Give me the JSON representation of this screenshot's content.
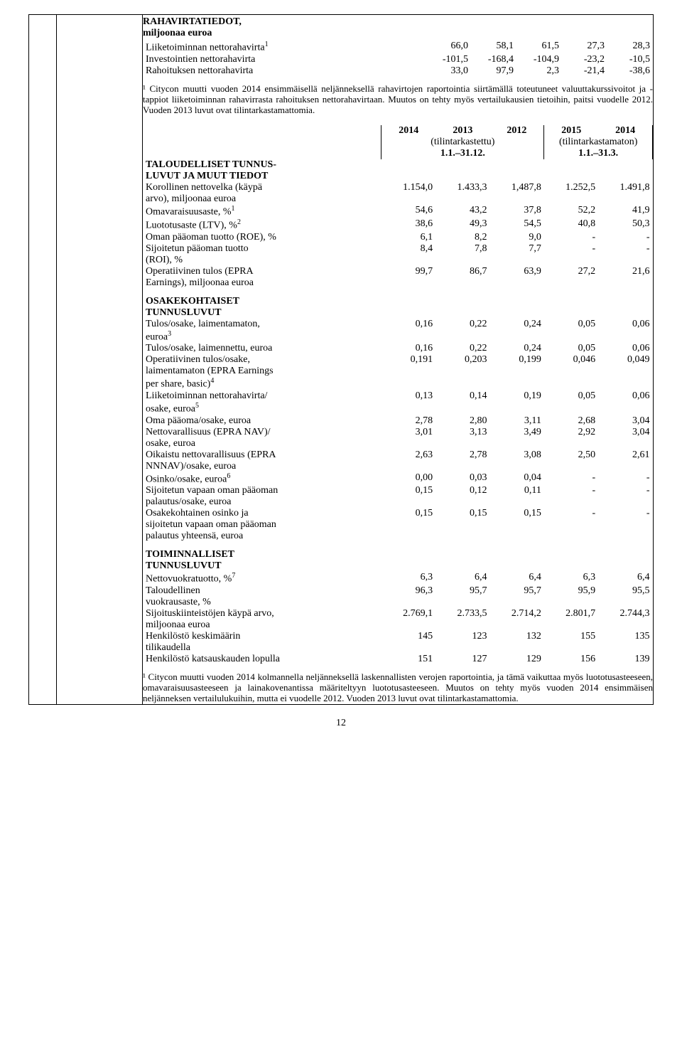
{
  "cashflow": {
    "title": "RAHAVIRTATIEDOT,",
    "subtitle": "miljoonaa euroa",
    "rows": [
      {
        "label": "Liiketoiminnan nettorahavirta",
        "sup": "1",
        "c": [
          "66,0",
          "58,1",
          "61,5",
          "27,3",
          "28,3"
        ]
      },
      {
        "label": "Investointien nettorahavirta",
        "c": [
          "-101,5",
          "-168,4",
          "-104,9",
          "-23,2",
          "-10,5"
        ]
      },
      {
        "label": "Rahoituksen nettorahavirta",
        "c": [
          "33,0",
          "97,9",
          "2,3",
          "-21,4",
          "-38,6"
        ]
      }
    ],
    "footnote": "¹ Citycon muutti vuoden 2014 ensimmäisellä neljänneksellä rahavirtojen raportointia siirtämällä toteutuneet valuuttakurssivoitot ja -tappiot liiketoiminnan rahavirrasta rahoituksen nettorahavirtaan. Muutos on tehty myös vertailukausien tietoihin, paitsi vuodelle 2012. Vuoden 2013 luvut ovat tilintarkastamattomia."
  },
  "header": {
    "years_left": [
      "2014",
      "2013",
      "2012"
    ],
    "years_right": [
      "2015",
      "2014"
    ],
    "note_left": "(tilintarkastettu)",
    "note_right": "(tilintarkastamaton)",
    "period_left": "1.1.–31.12.",
    "period_right": "1.1.–31.3."
  },
  "sections": [
    {
      "title_lines": [
        "TALOUDELLISET TUNNUS-",
        "LUVUT JA MUUT TIEDOT"
      ],
      "rows": [
        {
          "label_lines": [
            "Korollinen nettovelka (käypä",
            "arvo), miljoonaa euroa"
          ],
          "c": [
            "1.154,0",
            "1.433,3",
            "1,487,8",
            "1.252,5",
            "1.491,8"
          ]
        },
        {
          "label": "Omavaraisuusaste, %",
          "sup": "1",
          "c": [
            "54,6",
            "43,2",
            "37,8",
            "52,2",
            "41,9"
          ]
        },
        {
          "label": "Luototusaste (LTV), %",
          "sup": "2",
          "c": [
            "38,6",
            "49,3",
            "54,5",
            "40,8",
            "50,3"
          ]
        },
        {
          "label": "Oman pääoman tuotto (ROE), %",
          "c": [
            "6,1",
            "8,2",
            "9,0",
            "-",
            "-"
          ]
        },
        {
          "label_lines": [
            "Sijoitetun pääoman tuotto",
            "(ROI), %"
          ],
          "c": [
            "8,4",
            "7,8",
            "7,7",
            "-",
            "-"
          ]
        },
        {
          "label_lines": [
            "Operatiivinen tulos (EPRA",
            "Earnings), miljoonaa euroa"
          ],
          "c": [
            "99,7",
            "86,7",
            "63,9",
            "27,2",
            "21,6"
          ]
        }
      ]
    },
    {
      "title_lines": [
        "OSAKEKOHTAISET",
        "TUNNUSLUVUT"
      ],
      "rows": [
        {
          "label_lines": [
            "Tulos/osake, laimentamaton,",
            "euroa"
          ],
          "sup": "3",
          "c": [
            "0,16",
            "0,22",
            "0,24",
            "0,05",
            "0,06"
          ]
        },
        {
          "label": "Tulos/osake, laimennettu, euroa",
          "c": [
            "0,16",
            "0,22",
            "0,24",
            "0,05",
            "0,06"
          ]
        },
        {
          "label_lines": [
            "Operatiivinen tulos/osake,",
            "laimentamaton (EPRA Earnings",
            "per share, basic)"
          ],
          "sup": "4",
          "c": [
            "0,191",
            "0,203",
            "0,199",
            "0,046",
            "0,049"
          ]
        },
        {
          "label_lines": [
            "Liiketoiminnan nettorahavirta/",
            "osake, euroa"
          ],
          "sup": "5",
          "c": [
            "0,13",
            "0,14",
            "0,19",
            "0,05",
            "0,06"
          ]
        },
        {
          "label": "Oma pääoma/osake, euroa",
          "c": [
            "2,78",
            "2,80",
            "3,11",
            "2,68",
            "3,04"
          ]
        },
        {
          "label_lines": [
            "Nettovarallisuus (EPRA NAV)/",
            "osake, euroa"
          ],
          "c": [
            "3,01",
            "3,13",
            "3,49",
            "2,92",
            "3,04"
          ]
        },
        {
          "label_lines": [
            "Oikaistu nettovarallisuus (EPRA",
            "NNNAV)/osake, euroa"
          ],
          "c": [
            "2,63",
            "2,78",
            "3,08",
            "2,50",
            "2,61"
          ]
        },
        {
          "label": "Osinko/osake, euroa",
          "sup": "6",
          "c": [
            "0,00",
            "0,03",
            "0,04",
            "-",
            "-"
          ]
        },
        {
          "label_lines": [
            "Sijoitetun vapaan oman pääoman",
            "palautus/osake, euroa"
          ],
          "c": [
            "0,15",
            "0,12",
            "0,11",
            "-",
            "-"
          ]
        },
        {
          "label_lines": [
            "Osakekohtainen osinko ja",
            "sijoitetun vapaan oman pääoman",
            "palautus yhteensä, euroa"
          ],
          "c": [
            "0,15",
            "0,15",
            "0,15",
            "-",
            "-"
          ]
        }
      ]
    },
    {
      "title_lines": [
        "TOIMINNALLISET",
        "TUNNUSLUVUT"
      ],
      "rows": [
        {
          "label": "Nettovuokratuotto, %",
          "sup": "7",
          "c": [
            "6,3",
            "6,4",
            "6,4",
            "6,3",
            "6,4"
          ]
        },
        {
          "label_lines": [
            "Taloudellinen",
            "vuokrausaste, %"
          ],
          "c": [
            "96,3",
            "95,7",
            "95,7",
            "95,9",
            "95,5"
          ]
        },
        {
          "label_lines": [
            "Sijoituskiinteistöjen käypä arvo,",
            "miljoonaa euroa"
          ],
          "c": [
            "2.769,1",
            "2.733,5",
            "2.714,2",
            "2.801,7",
            "2.744,3"
          ]
        },
        {
          "label_lines": [
            "Henkilöstö keskimäärin",
            "tilikaudella"
          ],
          "c": [
            "145",
            "123",
            "132",
            "155",
            "135"
          ]
        },
        {
          "label": "Henkilöstö katsauskauden lopulla",
          "c": [
            "151",
            "127",
            "129",
            "156",
            "139"
          ]
        }
      ]
    }
  ],
  "bottom_footnote": "¹ Citycon muutti vuoden 2014 kolmannella neljänneksellä laskennallisten verojen raportointia, ja tämä vaikuttaa myös luototusasteeseen, omavaraisuusasteeseen ja lainakovenantissa määriteltyyn luototusasteeseen. Muutos on tehty myös vuoden 2014 ensimmäisen neljänneksen vertailulukuihin, mutta ei vuodelle 2012. Vuoden 2013 luvut ovat tilintarkastamattomia.",
  "page_number": "12",
  "colors": {
    "background": "#ffffff",
    "text": "#000000",
    "border": "#000000"
  },
  "col_widths": {
    "label": 300,
    "num": 62
  }
}
